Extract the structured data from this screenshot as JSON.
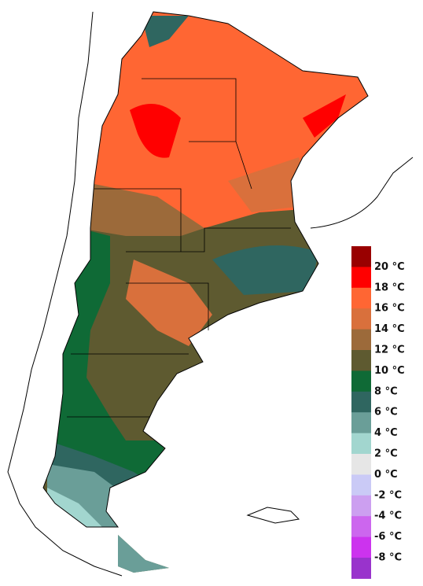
{
  "legend": {
    "labels": [
      "20 °C",
      "18 °C",
      "16 °C",
      "14 °C",
      "12 °C",
      "10 °C",
      "8 °C",
      "6 °C",
      "4 °C",
      "2 °C",
      "0 °C",
      "-2 °C",
      "-4 °C",
      "-6 °C",
      "-8 °C"
    ],
    "colors": [
      "#990000",
      "#ff0000",
      "#ff6633",
      "#d9703c",
      "#9c6a3a",
      "#5e5a30",
      "#0f6a36",
      "#2f6660",
      "#6a9e98",
      "#a2d6cf",
      "#e6e6e6",
      "#cacaf6",
      "#cc9ff0",
      "#cc66ee",
      "#cc33ee",
      "#9933cc"
    ]
  }
}
